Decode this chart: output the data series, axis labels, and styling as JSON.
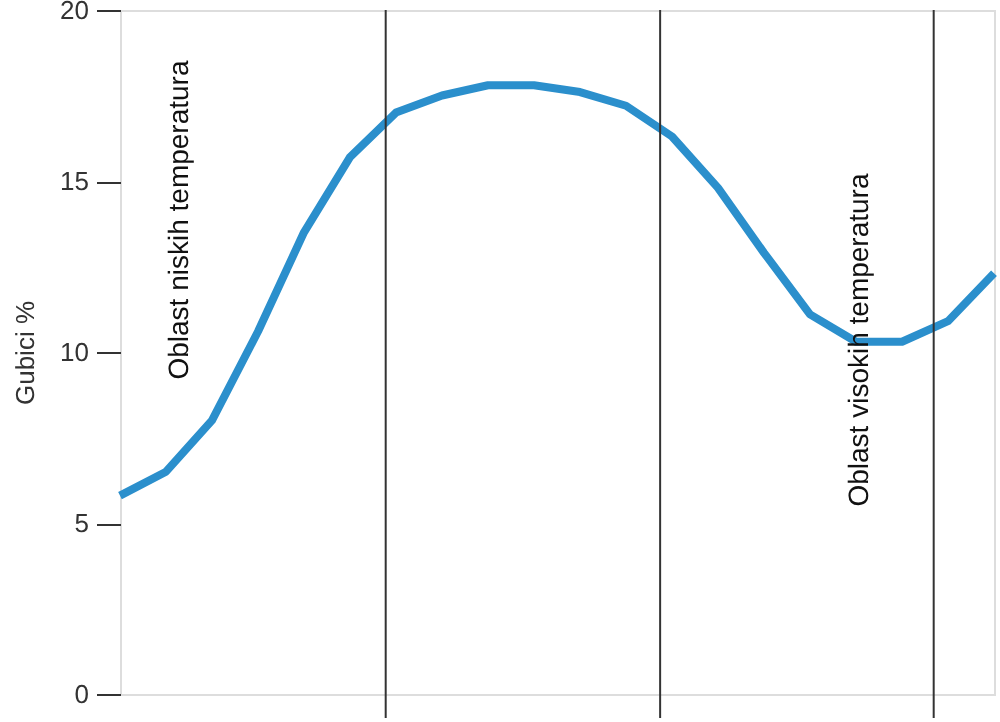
{
  "chart_data": {
    "type": "line",
    "ylabel": "Gubici %",
    "categories": [
      null,
      null,
      null,
      null,
      null,
      null,
      null,
      null,
      null,
      null,
      null,
      null,
      null,
      null,
      null,
      null,
      null,
      null,
      null,
      null
    ],
    "series": [
      {
        "color": "#2b8fcc",
        "values": [
          5.8,
          6.5,
          8.0,
          10.6,
          13.5,
          15.7,
          17.0,
          17.5,
          17.8,
          17.8,
          17.6,
          17.2,
          16.3,
          14.8,
          12.9,
          11.1,
          10.3,
          10.3,
          10.9,
          12.3
        ]
      }
    ],
    "ylim": [
      0,
      20
    ],
    "yticks": [
      0,
      5,
      10,
      15,
      20
    ],
    "tick_labels": "y",
    "grid": false,
    "marker": "none",
    "line_style": "solid",
    "annotations": [
      "Oblast niskih temperatura",
      "Oblast visokih temperatura"
    ]
  }
}
